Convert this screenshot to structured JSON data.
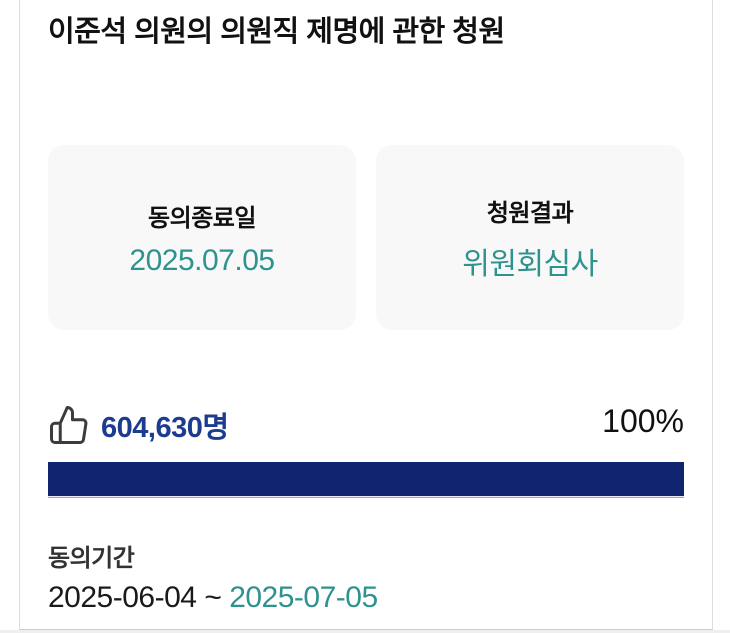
{
  "page": {
    "title": "이준석 의원의 의원직 제명에 관한 청원"
  },
  "summary_cards": [
    {
      "label": "동의종료일",
      "value": "2025.07.05"
    },
    {
      "label": "청원결과",
      "value": "위원회심사"
    }
  ],
  "agreement": {
    "icon": "thumbs-up-icon",
    "count": "604,630명",
    "percent_label": "100%",
    "progress_percent": 100
  },
  "period": {
    "label": "동의기간",
    "start": "2025-06-04",
    "separator": "~",
    "end": "2025-07-05"
  },
  "colors": {
    "teal": "#2E938E",
    "progress_navy": "#112470",
    "count_blue": "#1C3C90"
  }
}
